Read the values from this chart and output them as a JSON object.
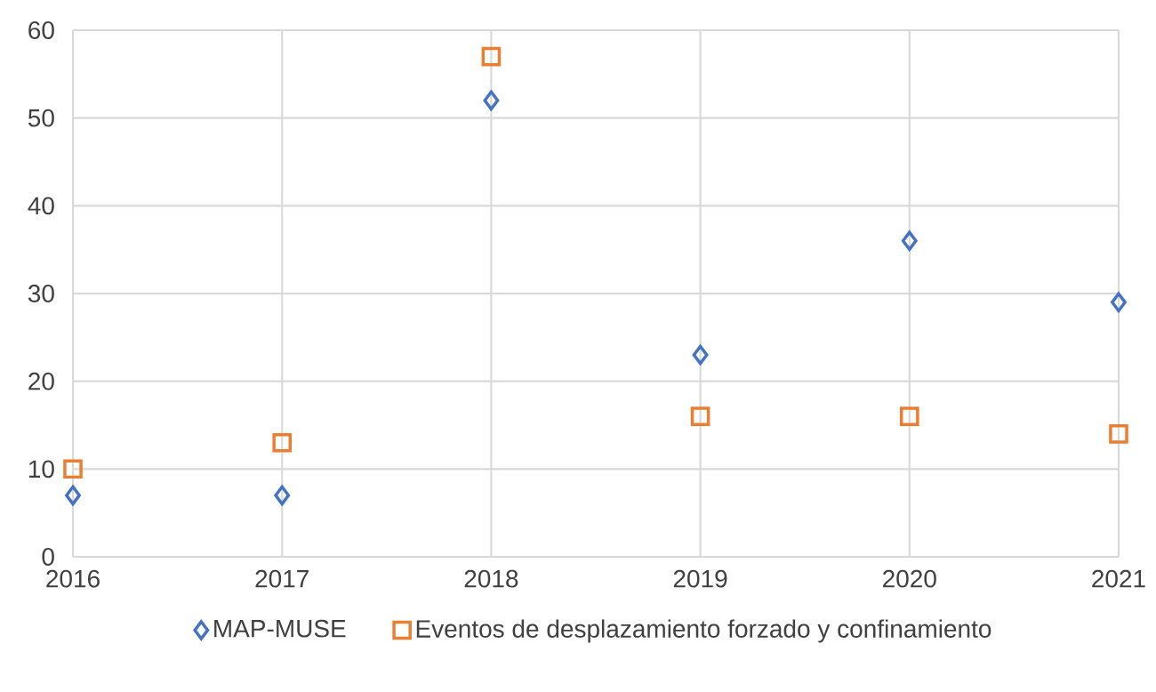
{
  "chart_data": {
    "type": "scatter",
    "x": [
      2016,
      2017,
      2018,
      2019,
      2020,
      2021
    ],
    "series": [
      {
        "name": "MAP-MUSE",
        "color": "#4472c4",
        "marker": "diamond",
        "values": [
          7,
          7,
          52,
          23,
          36,
          29
        ]
      },
      {
        "name": "Eventos de desplazamiento forzado y confinamiento",
        "color": "#ed7d31",
        "marker": "square",
        "values": [
          10,
          13,
          57,
          16,
          16,
          14
        ]
      }
    ],
    "xlim": [
      2016,
      2021
    ],
    "xticks": [
      2016,
      2017,
      2018,
      2019,
      2020,
      2021
    ],
    "ylim": [
      0,
      60
    ],
    "yticks": [
      0,
      10,
      20,
      30,
      40,
      50,
      60
    ],
    "grid": true,
    "legend": "bottom"
  }
}
